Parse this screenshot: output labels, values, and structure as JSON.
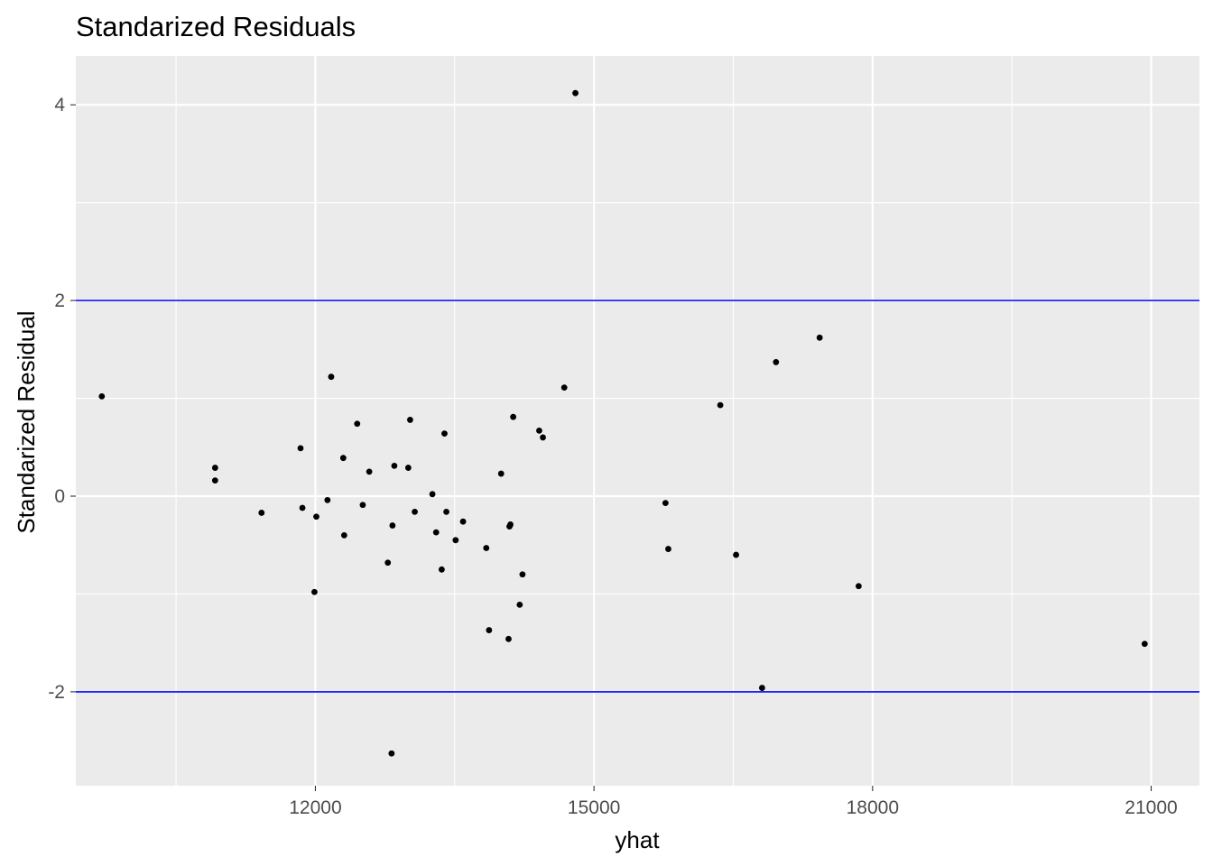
{
  "chart_data": {
    "type": "scatter",
    "title": "Standarized Residuals",
    "xlabel": "yhat",
    "ylabel": "Standarized Residual",
    "xlim": [
      9420,
      21520
    ],
    "ylim": [
      -2.96,
      4.5
    ],
    "xticks": [
      12000,
      15000,
      18000,
      21000
    ],
    "xtick_labels": [
      "12000",
      "15000",
      "18000",
      "21000"
    ],
    "yticks": [
      -2,
      0,
      2,
      4
    ],
    "ytick_labels": [
      "-2",
      "0",
      "2",
      "4"
    ],
    "reference_lines": {
      "y": [
        -2,
        2
      ],
      "color": "#0000ff"
    },
    "grid": true,
    "legend": "none",
    "colors": {
      "panel": "#ebebeb",
      "grid": "#ffffff",
      "point": "#000000",
      "tick_text": "#4d4d4d"
    },
    "points": [
      {
        "x": 9700,
        "y": 1.02
      },
      {
        "x": 10920,
        "y": 0.29
      },
      {
        "x": 10920,
        "y": 0.16
      },
      {
        "x": 11420,
        "y": -0.17
      },
      {
        "x": 11840,
        "y": 0.49
      },
      {
        "x": 11860,
        "y": -0.12
      },
      {
        "x": 11990,
        "y": -0.98
      },
      {
        "x": 12010,
        "y": -0.21
      },
      {
        "x": 12130,
        "y": -0.04
      },
      {
        "x": 12170,
        "y": 1.22
      },
      {
        "x": 12300,
        "y": 0.39
      },
      {
        "x": 12310,
        "y": -0.4
      },
      {
        "x": 12450,
        "y": 0.74
      },
      {
        "x": 12510,
        "y": -0.09
      },
      {
        "x": 12580,
        "y": 0.25
      },
      {
        "x": 12780,
        "y": -0.68
      },
      {
        "x": 12820,
        "y": -2.63
      },
      {
        "x": 12830,
        "y": -0.3
      },
      {
        "x": 12850,
        "y": 0.31
      },
      {
        "x": 13000,
        "y": 0.29
      },
      {
        "x": 13020,
        "y": 0.78
      },
      {
        "x": 13070,
        "y": -0.16
      },
      {
        "x": 13260,
        "y": 0.02
      },
      {
        "x": 13300,
        "y": -0.37
      },
      {
        "x": 13360,
        "y": -0.75
      },
      {
        "x": 13390,
        "y": 0.64
      },
      {
        "x": 13410,
        "y": -0.16
      },
      {
        "x": 13510,
        "y": -0.45
      },
      {
        "x": 13590,
        "y": -0.26
      },
      {
        "x": 13840,
        "y": -0.53
      },
      {
        "x": 13870,
        "y": -1.37
      },
      {
        "x": 14000,
        "y": 0.23
      },
      {
        "x": 14080,
        "y": -1.46
      },
      {
        "x": 14090,
        "y": -0.31
      },
      {
        "x": 14100,
        "y": -0.29
      },
      {
        "x": 14130,
        "y": 0.81
      },
      {
        "x": 14200,
        "y": -1.11
      },
      {
        "x": 14230,
        "y": -0.8
      },
      {
        "x": 14410,
        "y": 0.67
      },
      {
        "x": 14450,
        "y": 0.6
      },
      {
        "x": 14680,
        "y": 1.11
      },
      {
        "x": 14800,
        "y": 4.12
      },
      {
        "x": 15770,
        "y": -0.07
      },
      {
        "x": 15800,
        "y": -0.54
      },
      {
        "x": 16360,
        "y": 0.93
      },
      {
        "x": 16530,
        "y": -0.6
      },
      {
        "x": 16810,
        "y": -1.96
      },
      {
        "x": 16960,
        "y": 1.37
      },
      {
        "x": 17430,
        "y": 1.62
      },
      {
        "x": 17850,
        "y": -0.92
      },
      {
        "x": 20930,
        "y": -1.51
      }
    ]
  }
}
